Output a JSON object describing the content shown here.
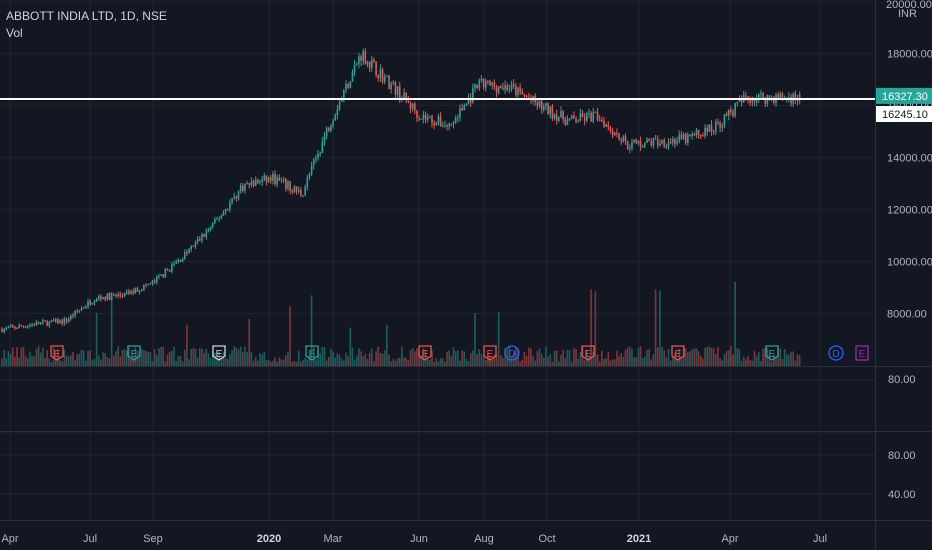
{
  "legend": {
    "symbol": "ABBOTT INDIA LTD, 1D, NSE",
    "volume_label": "Vol"
  },
  "price_axis": {
    "currency": "INR",
    "top_tick": "20000.00",
    "ticks": [
      "18000.00",
      "16000.00",
      "14000.00",
      "12000.00",
      "10000.00",
      "8000.00"
    ]
  },
  "price_tags": {
    "last_price": "16327.30",
    "line_price": "16245.10",
    "last_color": "#26a69a"
  },
  "indicator_panes": [
    {
      "ticks": [
        "80.00"
      ]
    },
    {
      "ticks": [
        "80.00",
        "40.00"
      ]
    }
  ],
  "time_axis": [
    {
      "label": "Apr",
      "bold": false
    },
    {
      "label": "Jul",
      "bold": false
    },
    {
      "label": "Sep",
      "bold": false
    },
    {
      "label": "2020",
      "bold": true
    },
    {
      "label": "Mar",
      "bold": false
    },
    {
      "label": "Jun",
      "bold": false
    },
    {
      "label": "Aug",
      "bold": false
    },
    {
      "label": "Oct",
      "bold": false
    },
    {
      "label": "2021",
      "bold": true
    },
    {
      "label": "Apr",
      "bold": false
    },
    {
      "label": "Jul",
      "bold": false
    }
  ],
  "events": [
    {
      "letter": "E",
      "kind": "earnings-past",
      "color": "#ef5350"
    },
    {
      "letter": "E",
      "kind": "earnings-past",
      "color": "#26a69a"
    },
    {
      "letter": "E",
      "kind": "earnings-past",
      "color": "#d1d4dc"
    },
    {
      "letter": "E",
      "kind": "earnings-past",
      "color": "#26a69a"
    },
    {
      "letter": "E",
      "kind": "earnings-past",
      "color": "#ef5350"
    },
    {
      "letter": "E",
      "kind": "earnings-past",
      "color": "#ef5350"
    },
    {
      "letter": "D",
      "kind": "dividend",
      "color": "#2962ff"
    },
    {
      "letter": "E",
      "kind": "earnings-past",
      "color": "#ef5350"
    },
    {
      "letter": "E",
      "kind": "earnings-past",
      "color": "#ef5350"
    },
    {
      "letter": "E",
      "kind": "earnings-past",
      "color": "#26a69a"
    },
    {
      "letter": "D",
      "kind": "dividend-upcoming",
      "color": "#2962ff"
    },
    {
      "letter": "E",
      "kind": "earnings-upcoming",
      "color": "#9c27b0"
    }
  ],
  "colors": {
    "background": "#131722",
    "grid": "#1f2433",
    "up": "#26a69a",
    "down": "#ef5350",
    "horizontal_line": "#ffffff"
  },
  "chart_data": {
    "type": "candlestick",
    "title": "ABBOTT INDIA LTD, 1D, NSE",
    "currency": "INR",
    "ylim": [
      6200,
      20000
    ],
    "x_range": [
      "2019-04",
      "2021-07"
    ],
    "horizontal_line": 16245.1,
    "last_price": 16327.3,
    "approx_close_series": [
      {
        "date": "2019-04",
        "value": 7400
      },
      {
        "date": "2019-05",
        "value": 7600
      },
      {
        "date": "2019-06",
        "value": 7700
      },
      {
        "date": "2019-07",
        "value": 8600
      },
      {
        "date": "2019-08",
        "value": 8700
      },
      {
        "date": "2019-09",
        "value": 9200
      },
      {
        "date": "2019-10",
        "value": 10200
      },
      {
        "date": "2019-11",
        "value": 11400
      },
      {
        "date": "2019-12",
        "value": 12900
      },
      {
        "date": "2020-01",
        "value": 13200
      },
      {
        "date": "2020-02",
        "value": 12600
      },
      {
        "date": "2020-03",
        "value": 15500
      },
      {
        "date": "2020-04",
        "value": 18000
      },
      {
        "date": "2020-05",
        "value": 16800
      },
      {
        "date": "2020-06",
        "value": 15600
      },
      {
        "date": "2020-07",
        "value": 15200
      },
      {
        "date": "2020-08",
        "value": 16800
      },
      {
        "date": "2020-09",
        "value": 16700
      },
      {
        "date": "2020-10",
        "value": 16000
      },
      {
        "date": "2020-11",
        "value": 15400
      },
      {
        "date": "2020-12",
        "value": 15600
      },
      {
        "date": "2021-01",
        "value": 14500
      },
      {
        "date": "2021-02",
        "value": 14600
      },
      {
        "date": "2021-03",
        "value": 14700
      },
      {
        "date": "2021-04",
        "value": 15200
      },
      {
        "date": "2021-05",
        "value": 16300
      }
    ]
  }
}
